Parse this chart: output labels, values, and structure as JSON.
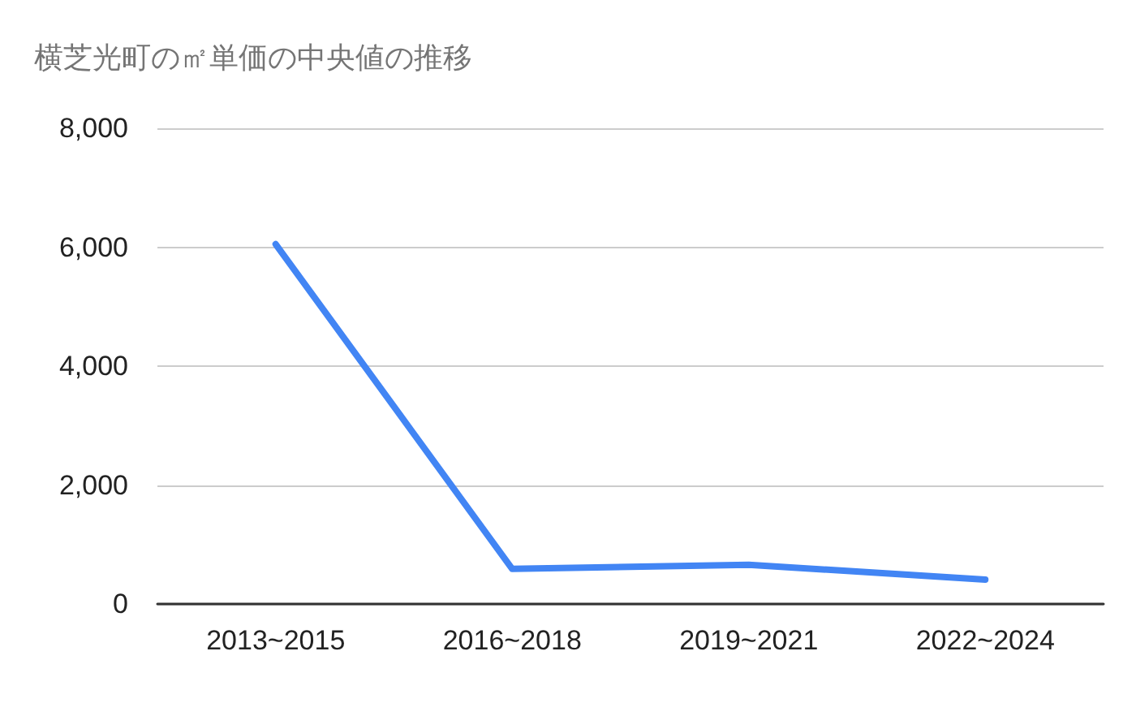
{
  "chart_data": {
    "type": "line",
    "title": "横芝光町の㎡単価の中央値の推移",
    "categories": [
      "2013~2015",
      "2016~2018",
      "2019~2021",
      "2022~2024"
    ],
    "series": [
      {
        "color": "#4285f4",
        "values": [
          6050,
          590,
          660,
          410
        ]
      }
    ],
    "ylim": [
      0,
      8000
    ],
    "yticks": [
      0,
      {
        "value": 2000,
        "label": "2,000"
      },
      {
        "value": 4000,
        "label": "4,000"
      },
      {
        "value": 6000,
        "label": "6,000"
      },
      {
        "value": 8000,
        "label": "8,000"
      }
    ],
    "grid": "y",
    "marker": "none",
    "line_style": "solid"
  }
}
